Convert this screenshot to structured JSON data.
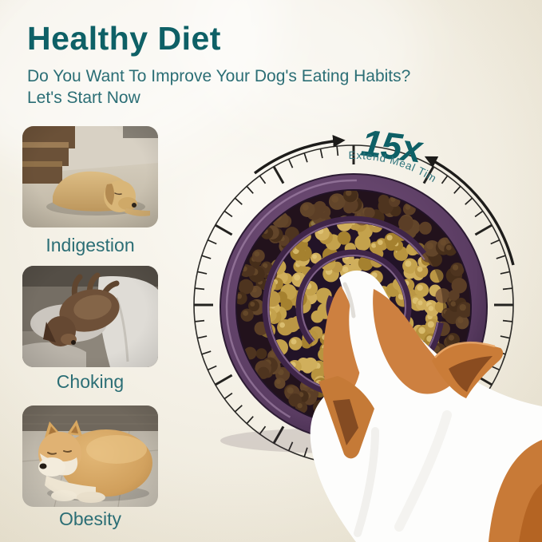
{
  "header": {
    "title": "Healthy Diet",
    "subtitle_line1": "Do You Want To Improve Your Dog's Eating Habits?",
    "subtitle_line2": "Let's Start Now"
  },
  "problems": [
    {
      "label": "Indigestion"
    },
    {
      "label": "Choking"
    },
    {
      "label": "Obesity"
    }
  ],
  "dial": {
    "multiplier": "15x",
    "caption": "Extend Meal Time"
  },
  "colors": {
    "accent_teal_dark": "#0e6066",
    "accent_teal": "#2b6e75",
    "dial_ink": "#23221f",
    "bowl_purple": "#4a2f52",
    "bowl_purple_deep": "#2c1b33",
    "kibble_gold": "#b8943f",
    "kibble_dark": "#6a4a2d",
    "corgi_orange": "#cd8040",
    "corgi_white": "#fdfdfc",
    "background_cream": "#f0ebde"
  }
}
